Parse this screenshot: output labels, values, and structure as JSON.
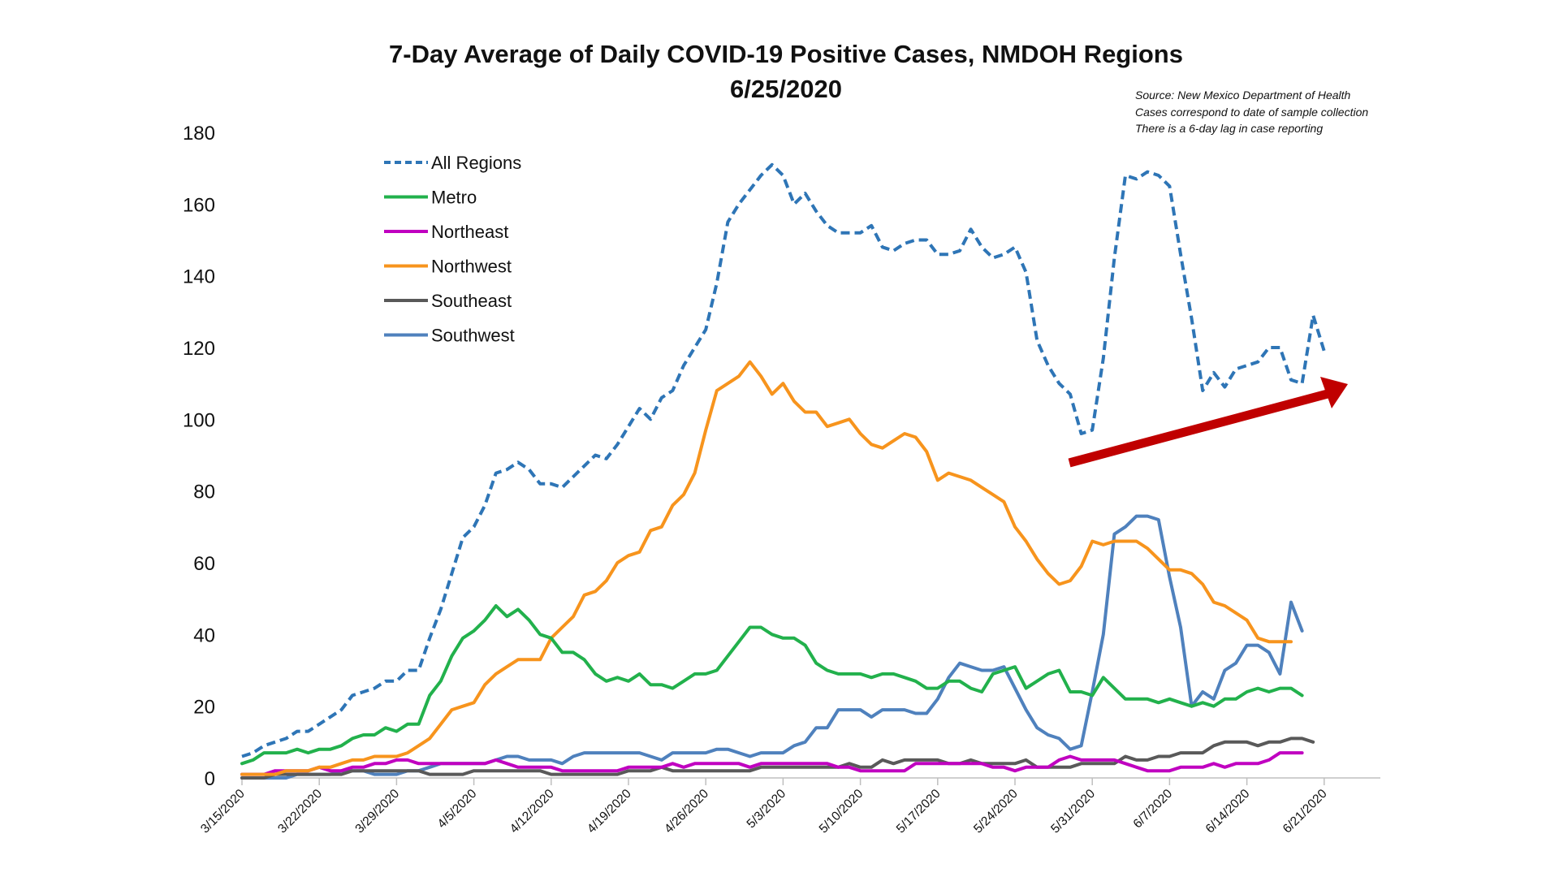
{
  "chart_data": {
    "type": "line",
    "title": "7-Day Average of Daily COVID-19 Positive Cases, NMDOH Regions",
    "subtitle": "6/25/2020",
    "notes": [
      "Source: New Mexico Department of Health",
      "Cases correspond to date of sample collection",
      "There is a 6-day lag in case reporting"
    ],
    "ylim": [
      0,
      180
    ],
    "yticks": [
      0,
      20,
      40,
      60,
      80,
      100,
      120,
      140,
      160,
      180
    ],
    "x_start": "3/15/2020",
    "x_end": "6/22/2020",
    "xticks": [
      "3/15/2020",
      "3/22/2020",
      "3/29/2020",
      "4/5/2020",
      "4/12/2020",
      "4/19/2020",
      "4/26/2020",
      "5/3/2020",
      "5/10/2020",
      "5/17/2020",
      "5/24/2020",
      "5/31/2020",
      "6/7/2020",
      "6/14/2020",
      "6/21/2020"
    ],
    "grid": false,
    "legend_position": "top-left",
    "annotation": {
      "type": "arrow",
      "color": "#C00000",
      "description": "upward trend arrow"
    },
    "series": [
      {
        "name": "All Regions",
        "color": "#2E75B6",
        "style": "dashed",
        "values": [
          6,
          7,
          9,
          10,
          11,
          13,
          13,
          15,
          17,
          19,
          23,
          24,
          25,
          27,
          27,
          30,
          30,
          39,
          47,
          57,
          67,
          70,
          76,
          85,
          86,
          88,
          86,
          82,
          82,
          81,
          84,
          87,
          90,
          89,
          93,
          98,
          103,
          100,
          106,
          108,
          115,
          120,
          125,
          138,
          155,
          160,
          164,
          168,
          171,
          168,
          160,
          163,
          158,
          154,
          152,
          152,
          152,
          154,
          148,
          147,
          149,
          150,
          150,
          146,
          146,
          147,
          153,
          148,
          145,
          146,
          148,
          141,
          122,
          115,
          110,
          107,
          96,
          97,
          117,
          145,
          168,
          167,
          169,
          168,
          165,
          146,
          128,
          108,
          113,
          109,
          114,
          115,
          116,
          120,
          120,
          111,
          110,
          129,
          119
        ],
        "n_points": 99
      },
      {
        "name": "Metro",
        "color": "#22B14C",
        "style": "solid",
        "values": [
          4,
          5,
          7,
          7,
          7,
          8,
          7,
          8,
          8,
          9,
          11,
          12,
          12,
          14,
          13,
          15,
          15,
          23,
          27,
          34,
          39,
          41,
          44,
          48,
          45,
          47,
          44,
          40,
          39,
          35,
          35,
          33,
          29,
          27,
          28,
          27,
          29,
          26,
          26,
          25,
          27,
          29,
          29,
          30,
          34,
          38,
          42,
          42,
          40,
          39,
          39,
          37,
          32,
          30,
          29,
          29,
          29,
          28,
          29,
          29,
          28,
          27,
          25,
          25,
          27,
          27,
          25,
          24,
          29,
          30,
          31,
          25,
          27,
          29,
          30,
          24,
          24,
          23,
          28,
          25,
          22,
          22,
          22,
          21,
          22,
          21,
          20,
          21,
          20,
          22,
          22,
          24,
          25,
          24,
          25,
          25,
          23
        ],
        "n_points": 97
      },
      {
        "name": "Northeast",
        "color": "#C000C0",
        "style": "solid",
        "values": [
          1,
          1,
          1,
          2,
          2,
          2,
          2,
          3,
          2,
          2,
          3,
          3,
          4,
          4,
          5,
          5,
          4,
          4,
          4,
          4,
          4,
          4,
          4,
          5,
          4,
          3,
          3,
          3,
          3,
          2,
          2,
          2,
          2,
          2,
          2,
          3,
          3,
          3,
          3,
          4,
          3,
          4,
          4,
          4,
          4,
          4,
          3,
          4,
          4,
          4,
          4,
          4,
          4,
          4,
          3,
          3,
          2,
          2,
          2,
          2,
          2,
          4,
          4,
          4,
          4,
          4,
          4,
          4,
          3,
          3,
          2,
          3,
          3,
          3,
          5,
          6,
          5,
          5,
          5,
          5,
          4,
          3,
          2,
          2,
          2,
          3,
          3,
          3,
          4,
          3,
          4,
          4,
          4,
          5,
          7,
          7,
          7
        ],
        "n_points": 97
      },
      {
        "name": "Northwest",
        "color": "#F7941D",
        "style": "solid",
        "values": [
          1,
          1,
          1,
          1,
          2,
          2,
          2,
          3,
          3,
          4,
          5,
          5,
          6,
          6,
          6,
          7,
          9,
          11,
          15,
          19,
          20,
          21,
          26,
          29,
          31,
          33,
          33,
          33,
          39,
          42,
          45,
          51,
          52,
          55,
          60,
          62,
          63,
          69,
          70,
          76,
          79,
          85,
          97,
          108,
          110,
          112,
          116,
          112,
          107,
          110,
          105,
          102,
          102,
          98,
          99,
          100,
          96,
          93,
          92,
          94,
          96,
          95,
          91,
          83,
          85,
          84,
          83,
          81,
          79,
          77,
          70,
          66,
          61,
          57,
          54,
          55,
          59,
          66,
          65,
          66,
          66,
          66,
          64,
          61,
          58,
          58,
          57,
          54,
          49,
          48,
          46,
          44,
          39,
          38,
          38,
          38
        ],
        "n_points": 96
      },
      {
        "name": "Southeast",
        "color": "#595959",
        "style": "solid",
        "values": [
          0,
          0,
          0,
          1,
          1,
          1,
          1,
          1,
          1,
          1,
          2,
          2,
          2,
          2,
          2,
          2,
          2,
          1,
          1,
          1,
          1,
          2,
          2,
          2,
          2,
          2,
          2,
          2,
          1,
          1,
          1,
          1,
          1,
          1,
          1,
          2,
          2,
          2,
          3,
          2,
          2,
          2,
          2,
          2,
          2,
          2,
          2,
          3,
          3,
          3,
          3,
          3,
          3,
          3,
          3,
          4,
          3,
          3,
          5,
          4,
          5,
          5,
          5,
          5,
          4,
          4,
          5,
          4,
          4,
          4,
          4,
          5,
          3,
          3,
          3,
          3,
          4,
          4,
          4,
          4,
          6,
          5,
          5,
          6,
          6,
          7,
          7,
          7,
          9,
          10,
          10,
          10,
          9,
          10,
          10,
          11,
          11,
          10
        ],
        "n_points": 98
      },
      {
        "name": "Southwest",
        "color": "#4F81BD",
        "style": "solid",
        "values": [
          0,
          0,
          0,
          0,
          0,
          1,
          1,
          1,
          1,
          2,
          2,
          2,
          1,
          1,
          1,
          2,
          2,
          3,
          4,
          4,
          4,
          4,
          4,
          5,
          6,
          6,
          5,
          5,
          5,
          4,
          6,
          7,
          7,
          7,
          7,
          7,
          7,
          6,
          5,
          7,
          7,
          7,
          7,
          8,
          8,
          7,
          6,
          7,
          7,
          7,
          9,
          10,
          14,
          14,
          19,
          19,
          19,
          17,
          19,
          19,
          19,
          18,
          18,
          22,
          28,
          32,
          31,
          30,
          30,
          31,
          25,
          19,
          14,
          12,
          11,
          8,
          9,
          24,
          40,
          68,
          70,
          73,
          73,
          72,
          56,
          42,
          20,
          24,
          22,
          30,
          32,
          37,
          37,
          35,
          29,
          49,
          41
        ],
        "n_points": 97
      }
    ]
  }
}
